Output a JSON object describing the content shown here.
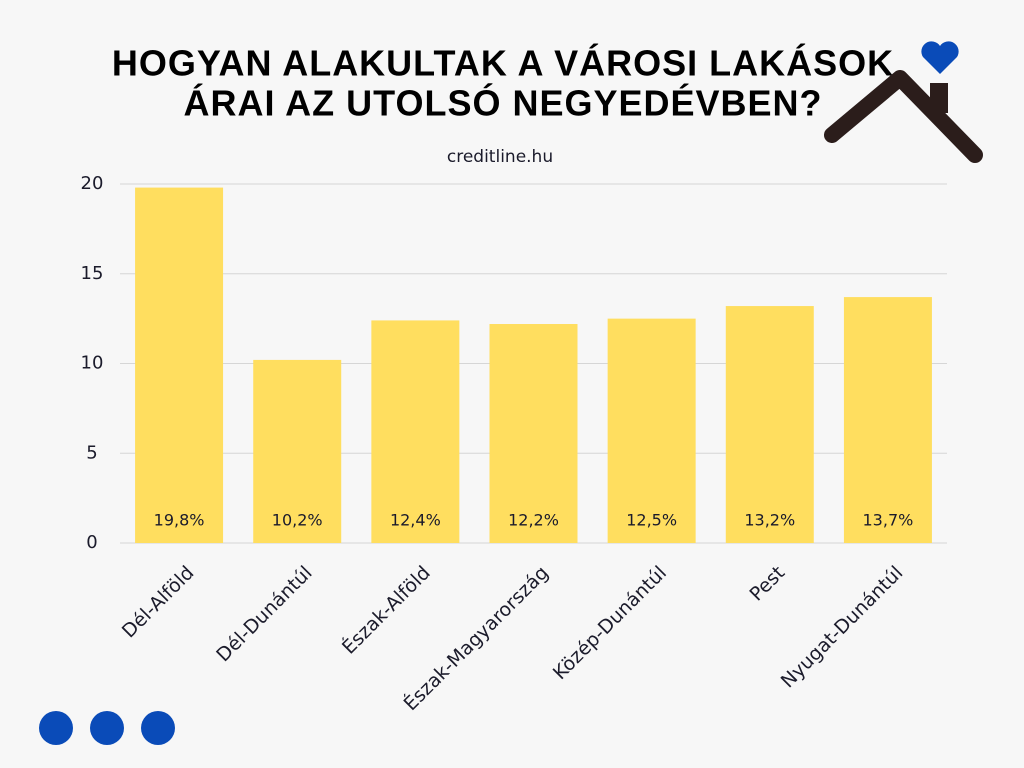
{
  "chart_data": {
    "type": "bar",
    "title": [
      "HOGYAN ALAKULTAK A VÁROSI LAKÁSOK",
      "ÁRAI AZ UTOLSÓ NEGYEDÉVBEN?"
    ],
    "subtitle": "creditline.hu",
    "categories": [
      "Dél-Alföld",
      "Dél-Dunántúl",
      "Észak-Alföld",
      "Észak-Magyarország",
      "Közép-Dunántúl",
      "Pest",
      "Nyugat-Dunántúl"
    ],
    "values": [
      19.8,
      10.2,
      12.4,
      12.2,
      12.5,
      13.2,
      13.7
    ],
    "value_labels": [
      "19,8%",
      "10,2%",
      "12,4%",
      "12,2%",
      "12,5%",
      "13,2%",
      "13,7%"
    ],
    "color": "#ffde5f",
    "ylim": [
      0,
      20
    ],
    "yticks": [
      0,
      5,
      10,
      15,
      20
    ],
    "grid": true
  }
}
